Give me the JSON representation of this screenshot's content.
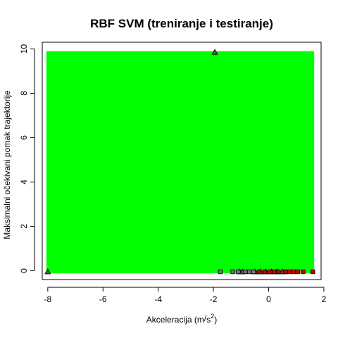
{
  "chart_data": {
    "type": "scatter",
    "title": "RBF SVM (treniranje i testiranje)",
    "xlabel": {
      "prefix": "Akceleracija (m",
      "slash": "/",
      "unit": "s",
      "exponent": "2",
      "suffix": ")"
    },
    "ylabel": "Maksimalni očekivani pomak trajektorije",
    "xlim": [
      -8.2,
      1.9
    ],
    "ylim": [
      -0.4,
      10.3
    ],
    "x_ticks": [
      -8,
      -6,
      -4,
      -2,
      0,
      2
    ],
    "x_tick_labels": [
      "-8",
      "-6",
      "-4",
      "-2",
      "0",
      "2"
    ],
    "y_ticks": [
      0,
      2,
      4,
      6,
      8,
      10
    ],
    "y_tick_labels": [
      "0",
      "2",
      "4",
      "6",
      "8",
      "10"
    ],
    "background_region": {
      "x": [
        -8.05,
        1.65
      ],
      "y": [
        -0.12,
        9.9
      ],
      "color": "#00ff00"
    },
    "grid": false,
    "series": [
      {
        "marker": "triangle",
        "fill": "#555555",
        "x": [
          -8.0,
          -1.95,
          -1.05,
          -0.95,
          -0.5,
          -0.3,
          -0.1,
          0.1,
          0.3,
          0.5
        ],
        "y": [
          -0.05,
          9.85,
          -0.05,
          -0.05,
          -0.05,
          -0.05,
          -0.05,
          -0.05,
          -0.05,
          -0.05
        ]
      },
      {
        "marker": "square",
        "fill": "#777777",
        "x": [
          -1.75,
          -1.3,
          -1.1,
          -0.85,
          -0.7,
          -0.55
        ],
        "y": [
          -0.05,
          -0.05,
          -0.05,
          -0.05,
          -0.05,
          -0.05
        ]
      },
      {
        "marker": "square",
        "fill": "#cc0000",
        "x": [
          -0.35,
          -0.15,
          0.05,
          0.2,
          0.35,
          0.6,
          0.75,
          0.9,
          1.05,
          1.25,
          1.6
        ],
        "y": [
          -0.05,
          -0.05,
          -0.05,
          -0.05,
          -0.05,
          -0.05,
          -0.05,
          -0.05,
          -0.05,
          -0.05,
          -0.05
        ]
      }
    ]
  }
}
